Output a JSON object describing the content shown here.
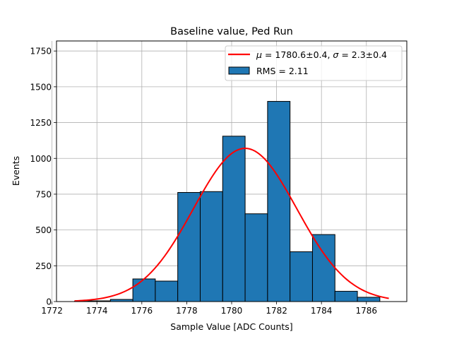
{
  "chart_data": {
    "type": "bar",
    "title": "Baseline value, Ped Run",
    "xlabel": "Sample Value [ADC Counts]",
    "ylabel": "Events",
    "xlim": [
      1772.2,
      1787.8
    ],
    "ylim": [
      0,
      1820
    ],
    "grid": true,
    "legend_position": "top-right",
    "x_ticks": [
      1772,
      1774,
      1776,
      1778,
      1780,
      1782,
      1784,
      1786
    ],
    "y_ticks": [
      0,
      250,
      500,
      750,
      1000,
      1250,
      1500,
      1750
    ],
    "histogram": {
      "name": "RMS = 2.11",
      "color": "#1f77b4",
      "edge_color": "#000000",
      "bin_edges": [
        1773.0,
        1773.6,
        1774.6,
        1775.6,
        1776.6,
        1777.6,
        1778.6,
        1779.6,
        1780.6,
        1781.6,
        1782.6,
        1783.6,
        1784.6,
        1785.6,
        1786.6
      ],
      "counts": [
        2,
        5,
        15,
        158,
        143,
        762,
        768,
        1155,
        613,
        1398,
        348,
        468,
        72,
        30
      ]
    },
    "fit": {
      "name_parts": [
        "μ",
        " = 1780.6±0.4, ",
        "σ",
        " = 2.3±0.4"
      ],
      "color": "#ff0000",
      "mu": 1780.6,
      "sigma": 2.3,
      "amplitude": 1070,
      "x_range": [
        1773.0,
        1787.0
      ]
    }
  }
}
